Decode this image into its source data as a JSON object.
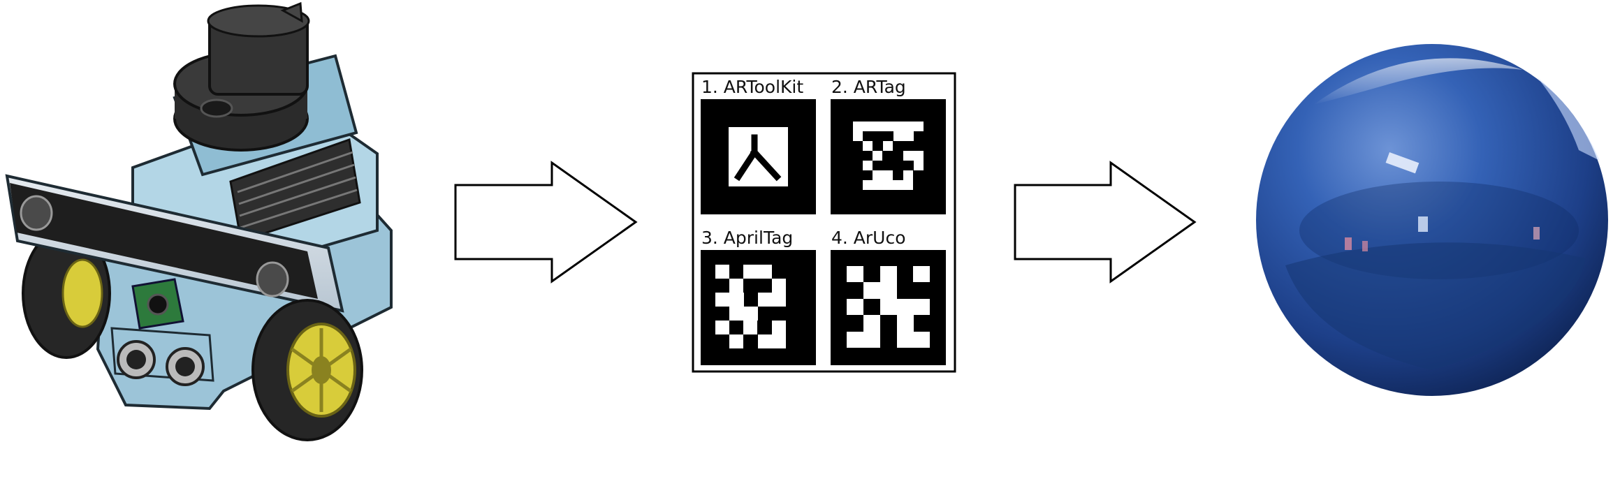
{
  "diagram": {
    "stages": [
      {
        "id": "robot",
        "icon": "robot-icon"
      },
      {
        "id": "fiducial-markers",
        "icon": "fiducial-marker-grid"
      },
      {
        "id": "sphere",
        "icon": "reflective-sphere-icon"
      }
    ],
    "markers": [
      {
        "label": "1. ARToolKit"
      },
      {
        "label": "2. ARTag"
      },
      {
        "label": "3. AprilTag"
      },
      {
        "label": "4. ArUco"
      }
    ],
    "colors": {
      "arrow_stroke": "#000000",
      "robot_body": "#a9cfe0",
      "robot_dark": "#2a2a2a",
      "wheel_rim": "#d8cc3a",
      "sphere_blue": "#2554a8"
    }
  }
}
